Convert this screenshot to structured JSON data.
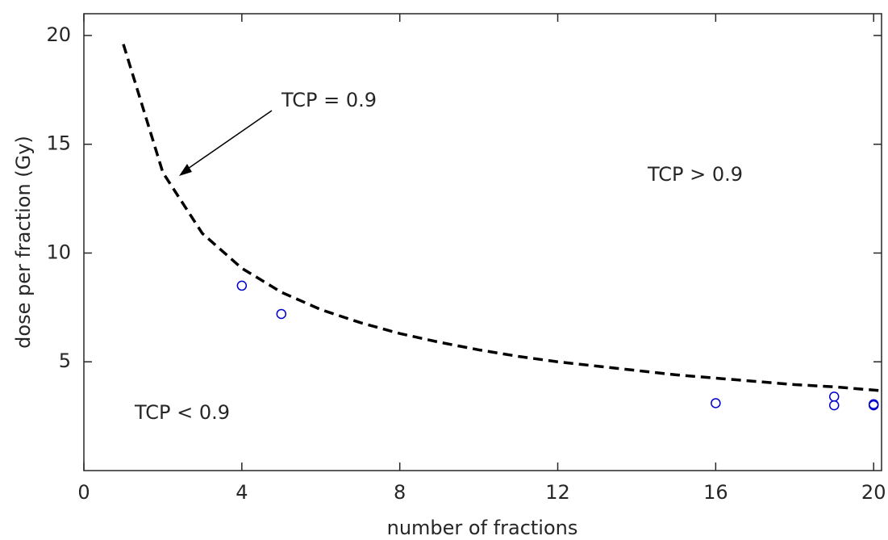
{
  "chart_data": {
    "type": "scatter",
    "xlabel": "number of fractions",
    "ylabel": "dose per fraction (Gy)",
    "xlim": [
      0,
      20.2
    ],
    "ylim": [
      0,
      21
    ],
    "xticks": [
      0,
      4,
      8,
      12,
      16,
      20
    ],
    "yticks": [
      5,
      10,
      15,
      20
    ],
    "curve": {
      "x": [
        1,
        2,
        3,
        4,
        5,
        6,
        7,
        8,
        9,
        10,
        11,
        12,
        13,
        14,
        15,
        16,
        17,
        18,
        19,
        20,
        20.2
      ],
      "values": [
        19.6,
        13.7,
        10.9,
        9.3,
        8.2,
        7.4,
        6.8,
        6.3,
        5.9,
        5.55,
        5.25,
        5.0,
        4.8,
        4.6,
        4.4,
        4.25,
        4.1,
        3.95,
        3.85,
        3.7,
        3.67
      ],
      "color": "#000000"
    },
    "points": {
      "x": [
        4,
        5,
        16,
        19,
        19,
        20,
        20
      ],
      "values": [
        8.5,
        7.2,
        3.1,
        3.4,
        3.0,
        3.05,
        3.0
      ],
      "color": "#0000cc"
    },
    "annotations": [
      "TCP = 0.9",
      "TCP > 0.9",
      "TCP < 0.9"
    ]
  }
}
